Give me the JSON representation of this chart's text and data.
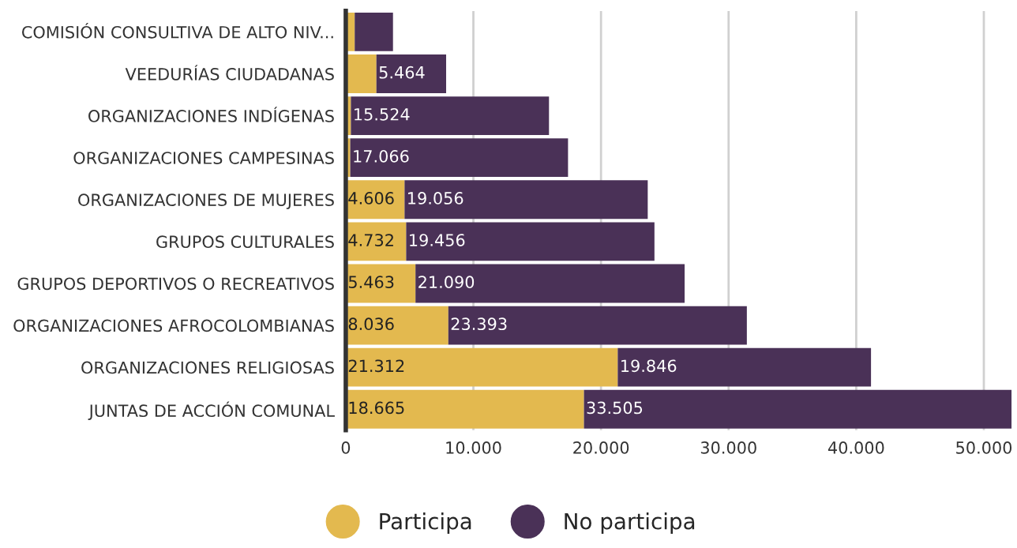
{
  "chart_data": {
    "type": "bar",
    "orientation": "horizontal",
    "stacked": true,
    "categories": [
      "COMISIÓN CONSULTIVA DE ALTO NIV...",
      "VEEDURÍAS CIUDADANAS",
      "ORGANIZACIONES INDÍGENAS",
      "ORGANIZACIONES CAMPESINAS",
      "ORGANIZACIONES DE MUJERES",
      "GRUPOS CULTURALES",
      "GRUPOS DEPORTIVOS O RECREATIVOS",
      "ORGANIZACIONES AFROCOLOMBIANAS",
      "ORGANIZACIONES RELIGIOSAS",
      "JUNTAS DE ACCIÓN COMUNAL"
    ],
    "series": [
      {
        "name": "Participa",
        "color": "#e3b94f",
        "values": [
          700,
          2400,
          400,
          350,
          4606,
          4732,
          5463,
          8036,
          21312,
          18665
        ],
        "value_labels": [
          null,
          null,
          null,
          null,
          "4.606",
          "4.732",
          "5.463",
          "8.036",
          "21.312",
          "18.665"
        ]
      },
      {
        "name": "No participa",
        "color": "#4a3157",
        "values": [
          3000,
          5464,
          15524,
          17066,
          19056,
          19456,
          21090,
          23393,
          19846,
          33505
        ],
        "value_labels": [
          null,
          "5.464",
          "15.524",
          "17.066",
          "19.056",
          "19.456",
          "21.090",
          "23.393",
          "19.846",
          "33.505"
        ]
      }
    ],
    "xlim": [
      0,
      52200
    ],
    "xticks": [
      0,
      {
        "value": 10000,
        "label": "10.000"
      },
      {
        "value": 20000,
        "label": "20.000"
      },
      {
        "value": 30000,
        "label": "30.000"
      },
      {
        "value": 40000,
        "label": "40.000"
      },
      {
        "value": 50000,
        "label": "50.000"
      }
    ],
    "grid": "x",
    "legend": "bottom",
    "marker": "circle"
  }
}
